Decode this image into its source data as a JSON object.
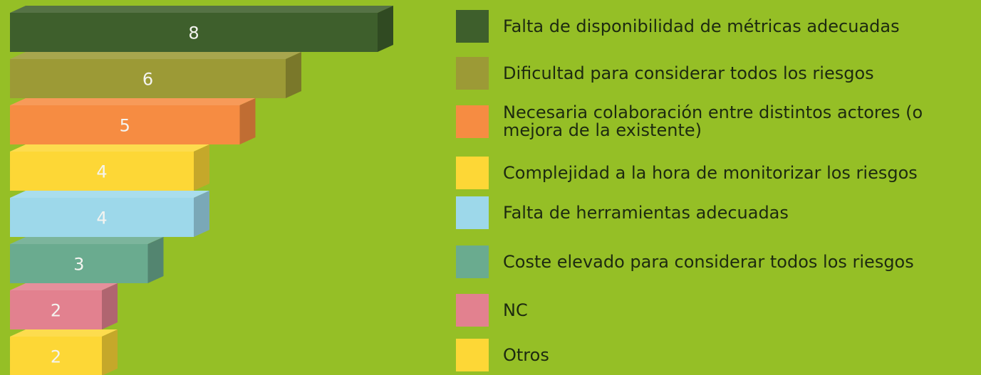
{
  "chart_data": {
    "type": "bar",
    "orientation": "horizontal",
    "categories": [
      "Falta de disponibilidad de métricas adecuadas",
      "Dificultad para considerar todos los riesgos",
      "Necesaria colaboración entre distintos actores (o mejora de la existente)",
      "Complejidad a la hora de monitorizar los riesgos",
      "Falta de herramientas adecuadas",
      "Coste elevado para considerar todos los riesgos",
      "NC",
      "Otros"
    ],
    "values": [
      8,
      6,
      5,
      4,
      4,
      3,
      2,
      2
    ],
    "colors": [
      "#3e5f2c",
      "#9c9a36",
      "#f68c42",
      "#fdd736",
      "#9dd8ea",
      "#6aab8f",
      "#e2818f",
      "#fdd736"
    ],
    "legend": "right"
  }
}
